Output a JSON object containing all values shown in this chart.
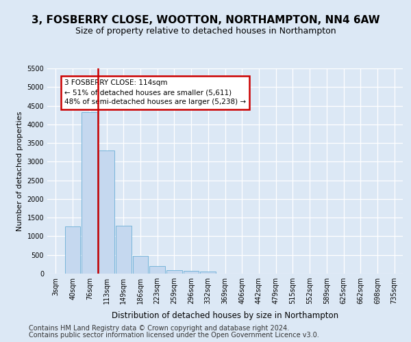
{
  "title1": "3, FOSBERRY CLOSE, WOOTTON, NORTHAMPTON, NN4 6AW",
  "title2": "Size of property relative to detached houses in Northampton",
  "xlabel": "Distribution of detached houses by size in Northampton",
  "ylabel": "Number of detached properties",
  "bar_labels": [
    "3sqm",
    "40sqm",
    "76sqm",
    "113sqm",
    "149sqm",
    "186sqm",
    "223sqm",
    "259sqm",
    "296sqm",
    "332sqm",
    "369sqm",
    "406sqm",
    "442sqm",
    "479sqm",
    "515sqm",
    "552sqm",
    "589sqm",
    "625sqm",
    "662sqm",
    "698sqm",
    "735sqm"
  ],
  "bar_values": [
    0,
    1270,
    4330,
    3300,
    1280,
    480,
    210,
    90,
    70,
    55,
    0,
    0,
    0,
    0,
    0,
    0,
    0,
    0,
    0,
    0,
    0
  ],
  "bar_color": "#c5d8ef",
  "bar_edge_color": "#6aaed6",
  "vline_x": 2.5,
  "vline_color": "#cc0000",
  "annotation_text": "3 FOSBERRY CLOSE: 114sqm\n← 51% of detached houses are smaller (5,611)\n48% of semi-detached houses are larger (5,238) →",
  "annotation_box_facecolor": "#ffffff",
  "annotation_box_edgecolor": "#cc0000",
  "ylim": [
    0,
    5500
  ],
  "yticks": [
    0,
    500,
    1000,
    1500,
    2000,
    2500,
    3000,
    3500,
    4000,
    4500,
    5000,
    5500
  ],
  "bg_color": "#dce8f5",
  "grid_color": "#ffffff",
  "title_fontsize": 11,
  "subtitle_fontsize": 9,
  "axis_label_fontsize": 8,
  "tick_fontsize": 7,
  "footer1": "Contains HM Land Registry data © Crown copyright and database right 2024.",
  "footer2": "Contains public sector information licensed under the Open Government Licence v3.0.",
  "footer_fontsize": 7
}
